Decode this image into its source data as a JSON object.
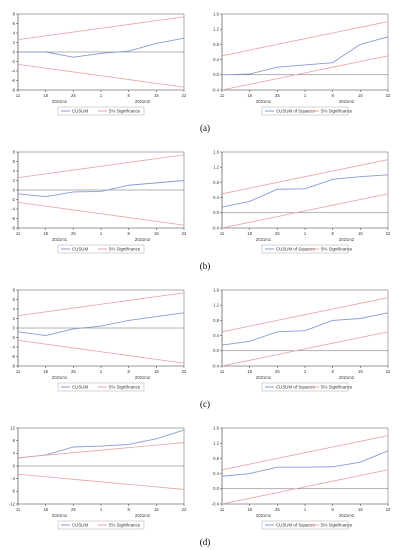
{
  "colors": {
    "stat_line": "#8c9ad0",
    "bounds": "#e7a3a6",
    "zero_line": "#666666",
    "axis": "#333333"
  },
  "panels": [
    {
      "label": "(a)"
    },
    {
      "label": "(b)"
    },
    {
      "label": "(c)"
    },
    {
      "label": "(d)"
    }
  ],
  "chart_data": [
    {
      "panel": "(a)",
      "type": "line",
      "x": [
        "11",
        "18",
        "25",
        "1",
        "8",
        "15",
        "22"
      ],
      "date_labels": [
        "2021m1",
        "2021m2"
      ],
      "ylim": [
        -8,
        8
      ],
      "yticks": [
        -8,
        -6,
        -4,
        -2,
        0,
        2,
        4,
        6,
        8
      ],
      "series": [
        {
          "name": "CUSUM",
          "values": [
            0.0,
            0.0,
            -1.1,
            -0.3,
            0.2,
            1.8,
            2.9
          ],
          "role": "stat"
        },
        {
          "name": "5% Significance",
          "values": [
            2.6,
            3.4,
            4.2,
            5.0,
            5.8,
            6.6,
            7.4
          ],
          "role": "upper"
        },
        {
          "name": "5% Significance",
          "values": [
            -2.6,
            -3.4,
            -4.2,
            -5.0,
            -5.8,
            -6.6,
            -7.4
          ],
          "role": "lower"
        }
      ],
      "legend": [
        "CUSUM",
        "5% Significance"
      ]
    },
    {
      "panel": "(a)",
      "type": "line",
      "x": [
        "11",
        "18",
        "25",
        "1",
        "8",
        "15",
        "22"
      ],
      "date_labels": [
        "2021m1",
        "2021m2"
      ],
      "ylim": [
        -0.4,
        1.6
      ],
      "yticks": [
        -0.4,
        0.0,
        0.4,
        0.8,
        1.2,
        1.6
      ],
      "series": [
        {
          "name": "CUSUM of Squares",
          "values": [
            0.0,
            0.02,
            0.2,
            0.26,
            0.32,
            0.8,
            1.0
          ],
          "role": "stat"
        },
        {
          "name": "5% Significance",
          "values": [
            0.5,
            0.65,
            0.8,
            0.95,
            1.1,
            1.25,
            1.4
          ],
          "role": "upper"
        },
        {
          "name": "5% Significance",
          "values": [
            -0.4,
            -0.25,
            -0.1,
            0.05,
            0.2,
            0.35,
            0.5
          ],
          "role": "lower"
        }
      ],
      "legend": [
        "CUSUM of Squares",
        "5% Significance"
      ]
    },
    {
      "panel": "(b)",
      "type": "line",
      "x": [
        "11",
        "18",
        "25",
        "1",
        "8",
        "15",
        "22"
      ],
      "date_labels": [
        "2021m1",
        "2021m2"
      ],
      "ylim": [
        -8,
        8
      ],
      "yticks": [
        -8,
        -6,
        -4,
        -2,
        0,
        2,
        4,
        6,
        8
      ],
      "series": [
        {
          "name": "CUSUM",
          "values": [
            -0.8,
            -1.4,
            -0.4,
            -0.3,
            1.0,
            1.5,
            2.0
          ],
          "role": "stat"
        },
        {
          "name": "5% Significance",
          "values": [
            2.6,
            3.4,
            4.2,
            5.0,
            5.8,
            6.6,
            7.4
          ],
          "role": "upper"
        },
        {
          "name": "5% Significance",
          "values": [
            -2.6,
            -3.4,
            -4.2,
            -5.0,
            -5.8,
            -6.6,
            -7.4
          ],
          "role": "lower"
        }
      ],
      "legend": [
        "CUSUM",
        "5% Significance"
      ]
    },
    {
      "panel": "(b)",
      "type": "line",
      "x": [
        "11",
        "18",
        "25",
        "1",
        "8",
        "15",
        "22"
      ],
      "date_labels": [
        "2021m1",
        "2021m2"
      ],
      "ylim": [
        -0.4,
        1.6
      ],
      "yticks": [
        -0.4,
        0.0,
        0.4,
        0.8,
        1.2,
        1.6
      ],
      "series": [
        {
          "name": "CUSUM of Squares",
          "values": [
            0.15,
            0.3,
            0.62,
            0.63,
            0.88,
            0.95,
            1.0
          ],
          "role": "stat"
        },
        {
          "name": "5% Significance",
          "values": [
            0.5,
            0.65,
            0.8,
            0.95,
            1.1,
            1.25,
            1.4
          ],
          "role": "upper"
        },
        {
          "name": "5% Significance",
          "values": [
            -0.4,
            -0.25,
            -0.1,
            0.05,
            0.2,
            0.35,
            0.5
          ],
          "role": "lower"
        }
      ],
      "legend": [
        "CUSUM of Squares",
        "5% Significance"
      ]
    },
    {
      "panel": "(c)",
      "type": "line",
      "x": [
        "11",
        "18",
        "25",
        "1",
        "8",
        "15",
        "22"
      ],
      "date_labels": [
        "2021m1",
        "2021m2"
      ],
      "ylim": [
        -8,
        8
      ],
      "yticks": [
        -8,
        -6,
        -4,
        -2,
        0,
        2,
        4,
        6,
        8
      ],
      "series": [
        {
          "name": "CUSUM",
          "values": [
            -0.8,
            -1.6,
            -0.2,
            0.4,
            1.6,
            2.4,
            3.2
          ],
          "role": "stat"
        },
        {
          "name": "5% Significance",
          "values": [
            2.6,
            3.4,
            4.2,
            5.0,
            5.8,
            6.6,
            7.4
          ],
          "role": "upper"
        },
        {
          "name": "5% Significance",
          "values": [
            -2.6,
            -3.4,
            -4.2,
            -5.0,
            -5.8,
            -6.6,
            -7.4
          ],
          "role": "lower"
        }
      ],
      "legend": [
        "CUSUM",
        "5% Significance"
      ]
    },
    {
      "panel": "(c)",
      "type": "line",
      "x": [
        "11",
        "18",
        "25",
        "1",
        "8",
        "15",
        "22"
      ],
      "date_labels": [
        "2021m1",
        "2021m2"
      ],
      "ylim": [
        -0.4,
        1.6
      ],
      "yticks": [
        -0.4,
        0.0,
        0.4,
        0.8,
        1.2,
        1.6
      ],
      "series": [
        {
          "name": "CUSUM of Squares",
          "values": [
            0.15,
            0.25,
            0.5,
            0.53,
            0.8,
            0.85,
            1.0
          ],
          "role": "stat"
        },
        {
          "name": "5% Significance",
          "values": [
            0.5,
            0.65,
            0.8,
            0.95,
            1.1,
            1.25,
            1.4
          ],
          "role": "upper"
        },
        {
          "name": "5% Significance",
          "values": [
            -0.4,
            -0.25,
            -0.1,
            0.05,
            0.2,
            0.35,
            0.5
          ],
          "role": "lower"
        }
      ],
      "legend": [
        "CUSUM of Squares",
        "5% Significance"
      ]
    },
    {
      "panel": "(d)",
      "type": "line",
      "x": [
        "11",
        "18",
        "25",
        "1",
        "8",
        "15",
        "22"
      ],
      "date_labels": [
        "2021m1",
        "2021m2"
      ],
      "ylim": [
        -12,
        12
      ],
      "yticks": [
        -12,
        -8,
        -4,
        0,
        4,
        8,
        12
      ],
      "series": [
        {
          "name": "CUSUM",
          "values": [
            2.5,
            3.5,
            6.0,
            6.3,
            6.8,
            8.6,
            11.4
          ],
          "role": "stat"
        },
        {
          "name": "5% Significance",
          "values": [
            2.6,
            3.4,
            4.2,
            5.0,
            5.8,
            6.6,
            7.4
          ],
          "role": "upper"
        },
        {
          "name": "5% Significance",
          "values": [
            -2.6,
            -3.4,
            -4.2,
            -5.0,
            -5.8,
            -6.6,
            -7.4
          ],
          "role": "lower"
        }
      ],
      "legend": [
        "CUSUM",
        "5% Significance"
      ]
    },
    {
      "panel": "(d)",
      "type": "line",
      "x": [
        "11",
        "18",
        "25",
        "1",
        "8",
        "15",
        "22"
      ],
      "date_labels": [
        "2021m1",
        "2021m2"
      ],
      "ylim": [
        -0.4,
        1.6
      ],
      "yticks": [
        -0.4,
        0.0,
        0.4,
        0.8,
        1.2,
        1.6
      ],
      "series": [
        {
          "name": "CUSUM of Squares",
          "values": [
            0.33,
            0.4,
            0.57,
            0.57,
            0.58,
            0.7,
            1.0
          ],
          "role": "stat"
        },
        {
          "name": "5% Significance",
          "values": [
            0.5,
            0.65,
            0.8,
            0.95,
            1.1,
            1.25,
            1.4
          ],
          "role": "upper"
        },
        {
          "name": "5% Significance",
          "values": [
            -0.4,
            -0.25,
            -0.1,
            0.05,
            0.2,
            0.35,
            0.5
          ],
          "role": "lower"
        }
      ],
      "legend": [
        "CUSUM of Squares",
        "5% Significance"
      ]
    }
  ]
}
